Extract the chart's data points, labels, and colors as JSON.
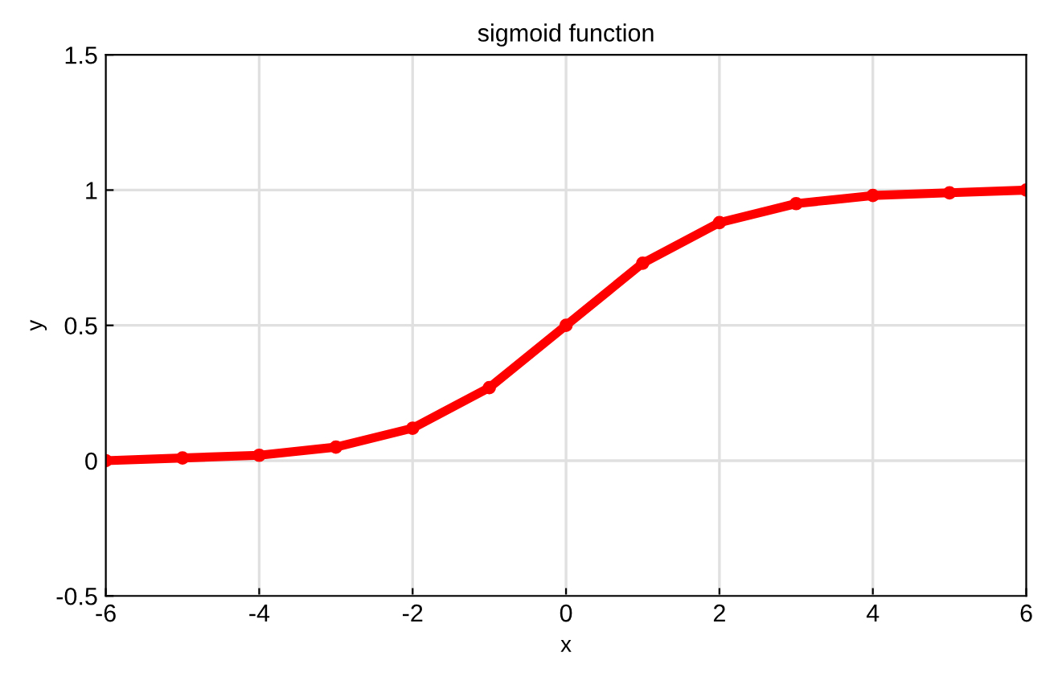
{
  "chart_data": {
    "type": "line",
    "title": "sigmoid function",
    "xlabel": "x",
    "ylabel": "y",
    "x": [
      -6,
      -5,
      -4,
      -3,
      -2,
      -1,
      0,
      1,
      2,
      3,
      4,
      5,
      6
    ],
    "series": [
      {
        "color": "#ff0000",
        "values": [
          0.0,
          0.01,
          0.02,
          0.05,
          0.12,
          0.27,
          0.5,
          0.73,
          0.88,
          0.95,
          0.98,
          0.99,
          1.0
        ]
      }
    ],
    "xlim": [
      -6,
      6
    ],
    "ylim": [
      -0.5,
      1.5
    ],
    "xticks": [
      -6,
      -4,
      -2,
      0,
      2,
      4,
      6
    ],
    "yticks": [
      -0.5,
      0,
      0.5,
      1,
      1.5
    ],
    "grid": true,
    "marker": "circle",
    "line_style": "solid"
  }
}
